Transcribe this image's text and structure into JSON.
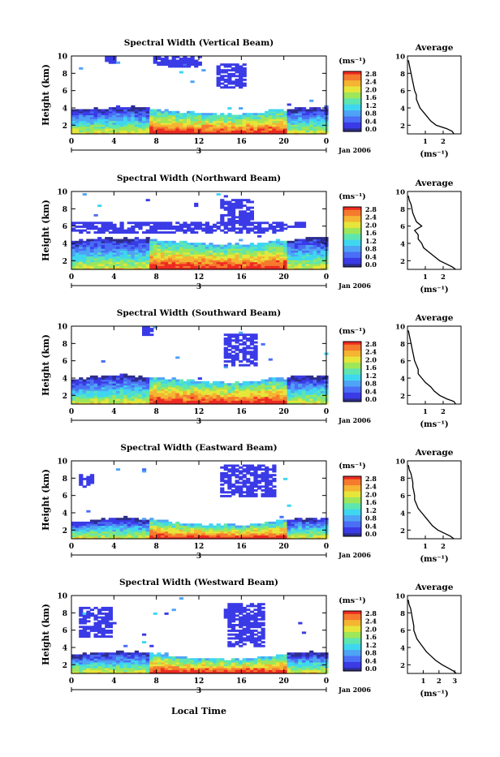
{
  "figure": {
    "x_axis_title": "Local Time",
    "date_label": "Jan 2006",
    "day_label": "3",
    "x_ticks": [
      "0",
      "4",
      "8",
      "12",
      "16",
      "20",
      "0"
    ],
    "y_label": "Height (km)",
    "y_ticks": [
      "2",
      "4",
      "6",
      "8",
      "10"
    ],
    "colorbar_units": "(ms⁻¹)",
    "colorbar_ticks": [
      "2.8",
      "2.4",
      "2.0",
      "1.6",
      "1.2",
      "0.8",
      "0.4",
      "0.0"
    ],
    "colorscale": [
      "#2d2d8c",
      "#3a3ae6",
      "#4a6ef5",
      "#4fa3f5",
      "#3fd6f0",
      "#5ee6b0",
      "#9ee65a",
      "#e6e63a",
      "#f5b432",
      "#f57a2d",
      "#ee2a22"
    ],
    "average_title": "Average",
    "average_units": "(ms⁻¹)"
  },
  "chart_data": [
    {
      "type": "heatmap",
      "title": "Spectral Width (Vertical Beam)",
      "x_range": [
        0,
        24
      ],
      "y_range": [
        1,
        10
      ],
      "colorbar_range": [
        0.0,
        2.8
      ],
      "avg_xticks": [
        "1",
        "2"
      ],
      "avg_xrange": [
        0,
        3.0
      ],
      "average_profile": [
        [
          1.0,
          2.6
        ],
        [
          1.3,
          2.5
        ],
        [
          1.6,
          2.2
        ],
        [
          2.0,
          1.6
        ],
        [
          2.5,
          1.3
        ],
        [
          3.0,
          1.1
        ],
        [
          3.5,
          0.9
        ],
        [
          4.0,
          0.7
        ],
        [
          4.5,
          0.6
        ],
        [
          5.0,
          0.5
        ],
        [
          5.5,
          0.5
        ],
        [
          6.0,
          0.4
        ],
        [
          6.5,
          0.35
        ],
        [
          7.0,
          0.3
        ],
        [
          7.5,
          0.25
        ],
        [
          8.0,
          0.2
        ],
        [
          8.5,
          0.15
        ],
        [
          9.0,
          0.1
        ],
        [
          9.5,
          0.05
        ]
      ]
    },
    {
      "type": "heatmap",
      "title": "Spectral Width (Northward Beam)",
      "x_range": [
        0,
        24
      ],
      "y_range": [
        1,
        10
      ],
      "colorbar_range": [
        0.0,
        2.8
      ],
      "avg_xticks": [
        "1",
        "2"
      ],
      "avg_xrange": [
        0,
        3.0
      ],
      "average_profile": [
        [
          1.0,
          2.7
        ],
        [
          1.3,
          2.5
        ],
        [
          1.6,
          2.2
        ],
        [
          2.0,
          1.8
        ],
        [
          2.5,
          1.5
        ],
        [
          3.0,
          1.2
        ],
        [
          3.5,
          0.9
        ],
        [
          4.0,
          0.8
        ],
        [
          4.5,
          0.6
        ],
        [
          5.0,
          0.6
        ],
        [
          5.5,
          0.4
        ],
        [
          6.0,
          0.8
        ],
        [
          6.5,
          0.5
        ],
        [
          7.0,
          0.4
        ],
        [
          7.5,
          0.3
        ],
        [
          8.0,
          0.25
        ],
        [
          8.5,
          0.2
        ],
        [
          9.0,
          0.1
        ],
        [
          9.5,
          0.05
        ]
      ]
    },
    {
      "type": "heatmap",
      "title": "Spectral Width (Southward Beam)",
      "x_range": [
        0,
        24
      ],
      "y_range": [
        1,
        10
      ],
      "colorbar_range": [
        0.0,
        2.8
      ],
      "avg_xticks": [
        "1",
        "2"
      ],
      "avg_xrange": [
        0,
        3.0
      ],
      "average_profile": [
        [
          1.0,
          2.7
        ],
        [
          1.3,
          2.6
        ],
        [
          1.6,
          2.2
        ],
        [
          2.0,
          1.8
        ],
        [
          2.5,
          1.5
        ],
        [
          3.0,
          1.3
        ],
        [
          3.5,
          1.0
        ],
        [
          4.0,
          0.8
        ],
        [
          4.5,
          0.6
        ],
        [
          5.0,
          0.6
        ],
        [
          5.5,
          0.5
        ],
        [
          6.0,
          0.4
        ],
        [
          6.5,
          0.35
        ],
        [
          7.0,
          0.3
        ],
        [
          7.5,
          0.25
        ],
        [
          8.0,
          0.2
        ],
        [
          8.5,
          0.15
        ],
        [
          9.0,
          0.1
        ],
        [
          9.5,
          0.05
        ]
      ]
    },
    {
      "type": "heatmap",
      "title": "Spectral Width (Eastward Beam)",
      "x_range": [
        0,
        24
      ],
      "y_range": [
        1,
        10
      ],
      "colorbar_range": [
        0.0,
        2.8
      ],
      "avg_xticks": [
        "1",
        "2"
      ],
      "avg_xrange": [
        0,
        3.0
      ],
      "average_profile": [
        [
          1.0,
          2.6
        ],
        [
          1.3,
          2.4
        ],
        [
          1.6,
          2.1
        ],
        [
          2.0,
          1.7
        ],
        [
          2.5,
          1.4
        ],
        [
          3.0,
          1.2
        ],
        [
          3.5,
          1.0
        ],
        [
          4.0,
          0.8
        ],
        [
          4.5,
          0.6
        ],
        [
          5.0,
          0.5
        ],
        [
          5.5,
          0.4
        ],
        [
          6.0,
          0.4
        ],
        [
          6.5,
          0.35
        ],
        [
          7.0,
          0.3
        ],
        [
          7.5,
          0.3
        ],
        [
          8.0,
          0.25
        ],
        [
          8.5,
          0.2
        ],
        [
          9.0,
          0.1
        ],
        [
          9.5,
          0.05
        ]
      ]
    },
    {
      "type": "heatmap",
      "title": "Spectral Width (Westward Beam)",
      "x_range": [
        0,
        24
      ],
      "y_range": [
        1,
        10
      ],
      "colorbar_range": [
        0.0,
        2.8
      ],
      "avg_xticks": [
        "1",
        "2",
        "3"
      ],
      "avg_xrange": [
        0,
        3.4
      ],
      "average_profile": [
        [
          1.0,
          3.1
        ],
        [
          1.3,
          2.9
        ],
        [
          1.6,
          2.6
        ],
        [
          2.0,
          2.2
        ],
        [
          2.5,
          1.8
        ],
        [
          3.0,
          1.5
        ],
        [
          3.5,
          1.2
        ],
        [
          4.0,
          1.0
        ],
        [
          4.5,
          0.8
        ],
        [
          5.0,
          0.6
        ],
        [
          5.5,
          0.5
        ],
        [
          6.0,
          0.4
        ],
        [
          6.5,
          0.4
        ],
        [
          7.0,
          0.35
        ],
        [
          7.5,
          0.3
        ],
        [
          8.0,
          0.25
        ],
        [
          8.5,
          0.2
        ],
        [
          9.0,
          0.1
        ],
        [
          9.5,
          0.05
        ]
      ]
    }
  ]
}
